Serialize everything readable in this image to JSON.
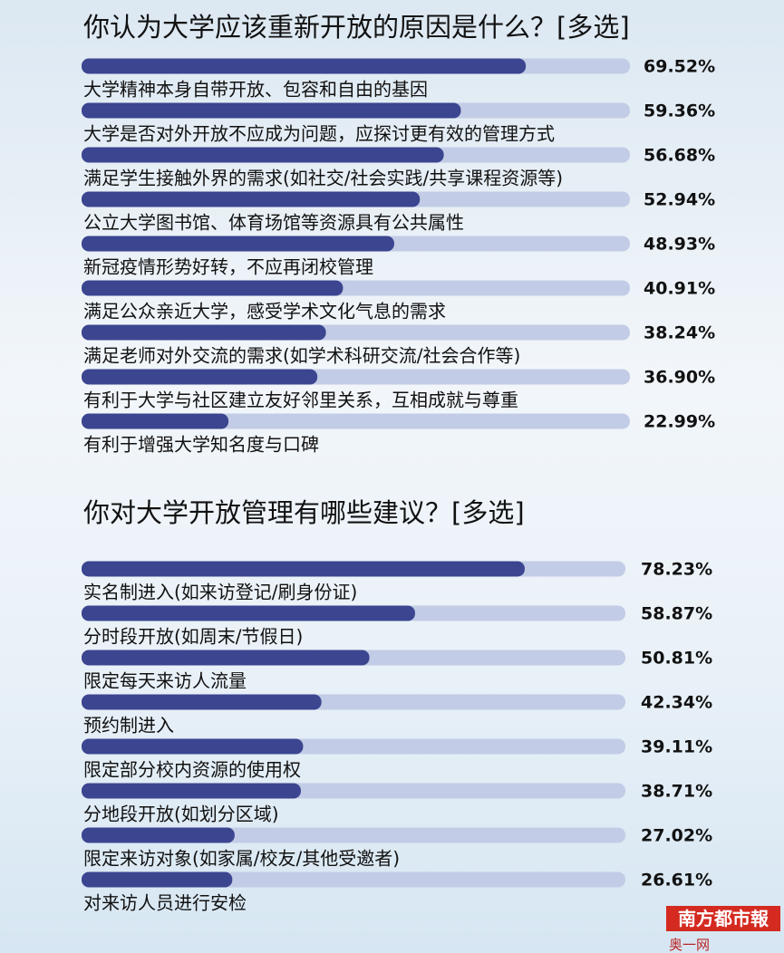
{
  "chart_data": [
    {
      "type": "bar",
      "orientation": "horizontal",
      "title": "你认为大学应该重新开放的原因是什么？[多选]",
      "categories": [
        "大学精神本身自带开放、包容和自由的基因",
        "大学是否对外开放不应成为问题，应探讨更有效的管理方式",
        "满足学生接触外界的需求(如社交/社会实践/共享课程资源等)",
        "公立大学图书馆、体育场馆等资源具有公共属性",
        "新冠疫情形势好转，不应再闭校管理",
        "满足公众亲近大学，感受学术文化气息的需求",
        "满足老师对外交流的需求(如学术科研交流/社会合作等)",
        "有利于大学与社区建立友好邻里关系，互相成就与尊重",
        "有利于增强大学知名度与口碑"
      ],
      "values": [
        69.52,
        59.36,
        56.68,
        52.94,
        48.93,
        40.91,
        38.24,
        36.9,
        22.99
      ],
      "value_labels": [
        "69.52%",
        "59.36%",
        "56.68%",
        "52.94%",
        "48.93%",
        "40.91%",
        "38.24%",
        "36.90%",
        "22.99%"
      ],
      "color": "#3b4590",
      "xlim": [
        0,
        100
      ]
    },
    {
      "type": "bar",
      "orientation": "horizontal",
      "title": "你对大学开放管理有哪些建议？[多选]",
      "categories": [
        "实名制进入(如来访登记/刷身份证)",
        "分时段开放(如周末/节假日)",
        "限定每天来访人流量",
        "预约制进入",
        "限定部分校内资源的使用权",
        "分地段开放(如划分区域)",
        "限定来访对象(如家属/校友/其他受邀者)",
        "对来访人员进行安检"
      ],
      "values": [
        78.23,
        58.87,
        50.81,
        42.34,
        39.11,
        38.71,
        27.02,
        26.61
      ],
      "value_labels": [
        "78.23%",
        "58.87%",
        "50.81%",
        "42.34%",
        "39.11%",
        "38.71%",
        "27.02%",
        "26.61%"
      ],
      "color": "#3b4590",
      "xlim": [
        0,
        100
      ]
    }
  ],
  "footer": {
    "brand": "南方都市報",
    "site": "奥一网 oeeee.com"
  }
}
